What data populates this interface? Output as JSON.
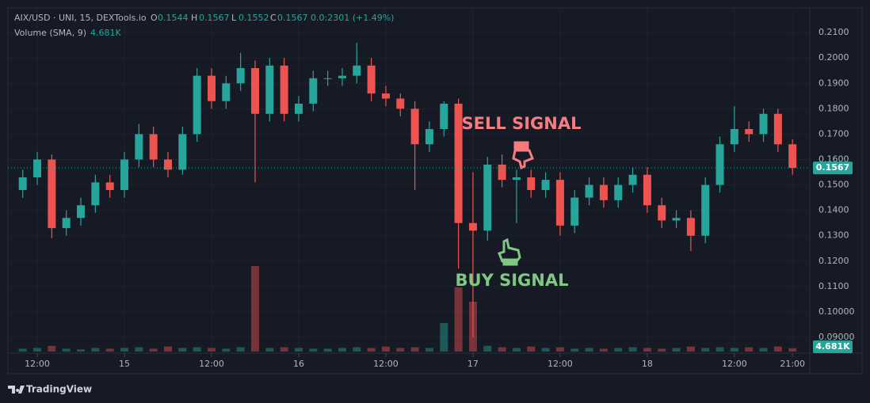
{
  "chart_data": {
    "type": "candlestick",
    "header": {
      "symbol": "AIX/USD · UNI, 15, DEXTools.io",
      "o_label": "O",
      "o": 0.1544,
      "h_label": "H",
      "h": 0.1567,
      "l_label": "L",
      "l": 0.1552,
      "c_label": "C",
      "c": 0.1567,
      "change": "0.0:2301 (+1.49%)",
      "volume_title": "Volume (SMA, 9)",
      "volume_value": "4.681K"
    },
    "annotations": {
      "sell": "SELL SIGNAL",
      "buy": "BUY SIGNAL"
    },
    "brand": "TradingView",
    "up_color": "#26a69a",
    "down_color": "#ef5350",
    "categories": [
      null,
      "12:00",
      null,
      null,
      null,
      null,
      null,
      "15",
      null,
      null,
      null,
      null,
      null,
      "12:00",
      null,
      null,
      null,
      null,
      null,
      "16",
      null,
      null,
      null,
      null,
      null,
      "12:00",
      null,
      null,
      null,
      null,
      null,
      "17",
      null,
      null,
      null,
      null,
      null,
      "12:00",
      null,
      null,
      null,
      null,
      null,
      "18",
      null,
      null,
      null,
      null,
      null,
      "12:00",
      null,
      null,
      null,
      "21:00"
    ],
    "open": [
      0.148,
      0.153,
      0.16,
      0.133,
      0.137,
      0.142,
      0.151,
      0.148,
      0.16,
      0.17,
      0.16,
      0.156,
      0.17,
      0.193,
      0.183,
      0.19,
      0.196,
      0.178,
      0.197,
      0.178,
      0.182,
      0.192,
      0.192,
      0.193,
      0.197,
      0.186,
      0.184,
      0.18,
      0.166,
      0.172,
      0.182,
      0.135,
      0.132,
      0.158,
      0.152,
      0.153,
      0.148,
      0.152,
      0.134,
      0.145,
      0.15,
      0.144,
      0.15,
      0.154,
      0.142,
      0.136,
      0.137,
      0.13,
      0.15,
      0.166,
      0.172,
      0.17,
      0.178,
      0.166
    ],
    "high": [
      0.156,
      0.163,
      0.162,
      0.14,
      0.145,
      0.154,
      0.154,
      0.163,
      0.174,
      0.173,
      0.163,
      0.173,
      0.196,
      0.196,
      0.193,
      0.202,
      0.199,
      0.2,
      0.2,
      0.185,
      0.195,
      0.195,
      0.196,
      0.206,
      0.2,
      0.189,
      0.186,
      0.183,
      0.175,
      0.183,
      0.184,
      0.155,
      0.161,
      0.162,
      0.156,
      0.156,
      0.155,
      0.155,
      0.148,
      0.153,
      0.153,
      0.153,
      0.157,
      0.157,
      0.145,
      0.14,
      0.14,
      0.153,
      0.169,
      0.181,
      0.175,
      0.18,
      0.18,
      0.168
    ],
    "low": [
      0.145,
      0.15,
      0.129,
      0.13,
      0.134,
      0.139,
      0.145,
      0.145,
      0.157,
      0.157,
      0.153,
      0.154,
      0.167,
      0.18,
      0.18,
      0.187,
      0.151,
      0.175,
      0.175,
      0.175,
      0.179,
      0.189,
      0.189,
      0.19,
      0.183,
      0.181,
      0.177,
      0.148,
      0.163,
      0.169,
      0.117,
      0.09,
      0.128,
      0.149,
      0.135,
      0.145,
      0.145,
      0.13,
      0.131,
      0.142,
      0.141,
      0.141,
      0.147,
      0.139,
      0.133,
      0.133,
      0.124,
      0.127,
      0.147,
      0.163,
      0.167,
      0.167,
      0.163,
      0.154
    ],
    "close": [
      0.153,
      0.16,
      0.133,
      0.137,
      0.142,
      0.151,
      0.148,
      0.16,
      0.17,
      0.16,
      0.156,
      0.17,
      0.193,
      0.183,
      0.19,
      0.196,
      0.178,
      0.197,
      0.178,
      0.182,
      0.192,
      0.192,
      0.193,
      0.197,
      0.186,
      0.184,
      0.18,
      0.166,
      0.172,
      0.182,
      0.135,
      0.132,
      0.158,
      0.152,
      0.153,
      0.148,
      0.152,
      0.134,
      0.145,
      0.15,
      0.144,
      0.15,
      0.154,
      0.142,
      0.136,
      0.137,
      0.13,
      0.15,
      0.166,
      0.172,
      0.17,
      0.178,
      0.166,
      0.1567
    ],
    "volume": [
      4,
      5,
      8,
      4,
      3,
      5,
      4,
      5,
      6,
      4,
      7,
      5,
      6,
      5,
      4,
      6,
      120,
      5,
      6,
      5,
      4,
      4,
      5,
      6,
      5,
      7,
      5,
      6,
      5,
      40,
      90,
      70,
      8,
      6,
      5,
      7,
      5,
      6,
      4,
      5,
      4,
      5,
      6,
      5,
      4,
      5,
      7,
      5,
      6,
      5,
      6,
      5,
      7,
      4.681
    ],
    "ylim": [
      0.0844,
      0.2197
    ],
    "yticks": [
      {
        "value": 0.09,
        "label": "0.09000"
      },
      {
        "value": 0.1,
        "label": "0.10000"
      },
      {
        "value": 0.11,
        "label": "0.1100"
      },
      {
        "value": 0.12,
        "label": "0.1200"
      },
      {
        "value": 0.13,
        "label": "0.1300"
      },
      {
        "value": 0.14,
        "label": "0.1400"
      },
      {
        "value": 0.15,
        "label": "0.1500"
      },
      {
        "value": 0.16,
        "label": "0.1600"
      },
      {
        "value": 0.17,
        "label": "0.1700"
      },
      {
        "value": 0.18,
        "label": "0.1800"
      },
      {
        "value": 0.19,
        "label": "0.1900"
      },
      {
        "value": 0.2,
        "label": "0.2000"
      },
      {
        "value": 0.21,
        "label": "0.2100"
      }
    ]
  }
}
